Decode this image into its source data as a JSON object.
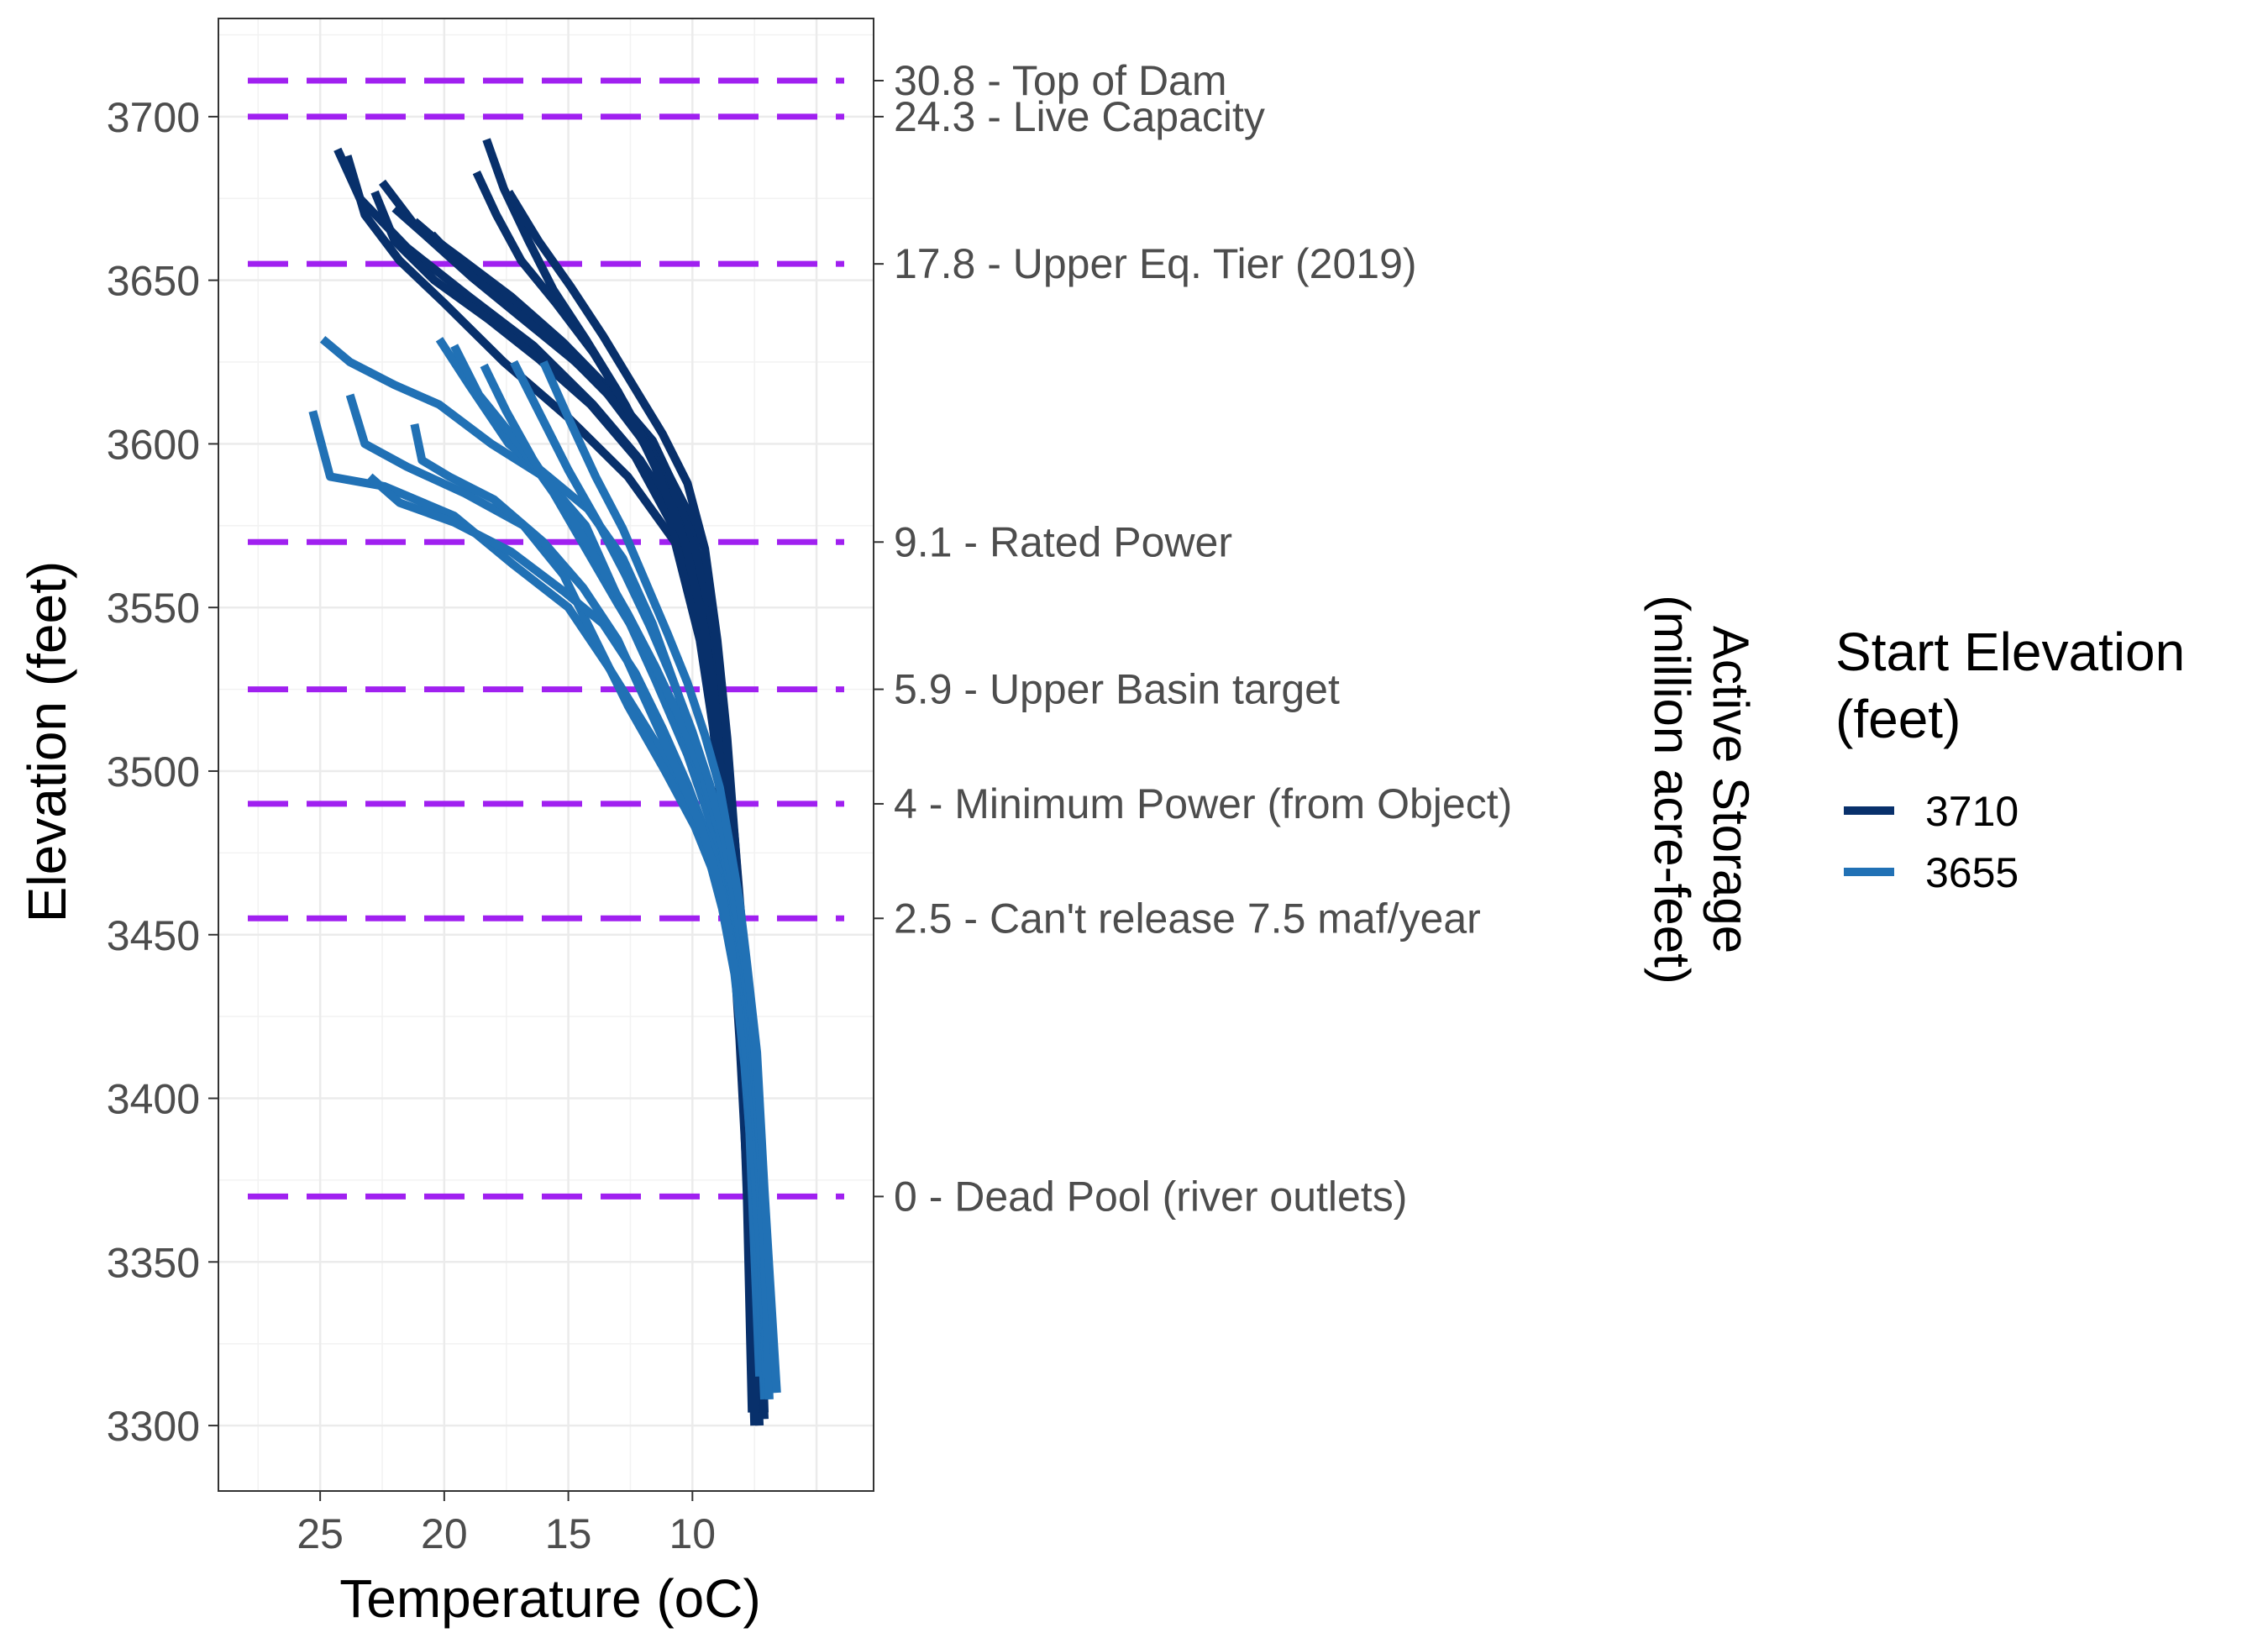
{
  "chart_data": {
    "type": "line",
    "xlabel": "Temperature (oC)",
    "ylabel": "Elevation (feet)",
    "y2label_line1": "Active Storage",
    "y2label_line2": "(million acre-feet)",
    "x_reversed": true,
    "xlim": [
      29.1,
      2.7
    ],
    "ylim": [
      3280,
      3730
    ],
    "xticks": [
      25,
      20,
      15,
      10
    ],
    "yticks": [
      3300,
      3350,
      3400,
      3450,
      3500,
      3550,
      3600,
      3650,
      3700
    ],
    "grid": true,
    "legend": {
      "title_line1": "Start Elevation",
      "title_line2": "(feet)",
      "placement": "right",
      "entries": [
        {
          "label": "3710",
          "color": "#08306B"
        },
        {
          "label": "3655",
          "color": "#2171B5"
        }
      ]
    },
    "reference_lines": {
      "color": "#A020F0",
      "style": "dashed",
      "items": [
        {
          "elevation": 3711,
          "label": "30.8 - Top of Dam"
        },
        {
          "elevation": 3700,
          "label": "24.3 - Live Capacity"
        },
        {
          "elevation": 3655,
          "label": "17.8 - Upper Eq. Tier (2019)"
        },
        {
          "elevation": 3570,
          "label": "9.1 - Rated Power"
        },
        {
          "elevation": 3525,
          "label": "5.9 - Upper Basin target"
        },
        {
          "elevation": 3490,
          "label": "4 - Minimum Power (from Object)"
        },
        {
          "elevation": 3455,
          "label": "2.5 - Can't release 7.5 maf/year"
        },
        {
          "elevation": 3370,
          "label": "0 - Dead Pool (river outlets)"
        }
      ]
    },
    "series": [
      {
        "group": "3710",
        "x": [
          24.3,
          23.4,
          21.5,
          19.0,
          16.4,
          14.0,
          12.1,
          10.4,
          9.5,
          8.9,
          8.5,
          8.2,
          7.9,
          7.6,
          7.5
        ],
        "y": [
          3690,
          3675,
          3660,
          3645,
          3630,
          3612,
          3595,
          3575,
          3545,
          3515,
          3485,
          3455,
          3420,
          3375,
          3302
        ]
      },
      {
        "group": "3710",
        "x": [
          23.9,
          23.2,
          21.8,
          20.0,
          17.6,
          15.0,
          12.6,
          10.7,
          9.7,
          9.1,
          8.6,
          8.3,
          8.0,
          7.8,
          7.6
        ],
        "y": [
          3688,
          3670,
          3656,
          3643,
          3625,
          3608,
          3590,
          3570,
          3540,
          3510,
          3478,
          3448,
          3412,
          3370,
          3304
        ]
      },
      {
        "group": "3710",
        "x": [
          22.8,
          22.0,
          20.4,
          18.2,
          16.2,
          14.1,
          12.3,
          10.8,
          9.8,
          9.2,
          8.8,
          8.4,
          8.1,
          7.7,
          7.3
        ],
        "y": [
          3677,
          3662,
          3650,
          3638,
          3626,
          3612,
          3596,
          3575,
          3546,
          3516,
          3486,
          3456,
          3420,
          3372,
          3300
        ]
      },
      {
        "group": "3710",
        "x": [
          22.5,
          21.2,
          19.4,
          17.3,
          15.2,
          13.4,
          11.6,
          10.3,
          9.6,
          9.1,
          8.7,
          8.3,
          8.0,
          7.7,
          7.4
        ],
        "y": [
          3680,
          3667,
          3657,
          3645,
          3631,
          3617,
          3601,
          3580,
          3552,
          3522,
          3492,
          3462,
          3428,
          3378,
          3304
        ]
      },
      {
        "group": "3710",
        "x": [
          22.0,
          20.8,
          18.9,
          16.8,
          14.7,
          13.0,
          11.4,
          10.1,
          9.4,
          8.9,
          8.6,
          8.2,
          7.9,
          7.6,
          7.2
        ],
        "y": [
          3672,
          3664,
          3651,
          3638,
          3625,
          3612,
          3597,
          3578,
          3550,
          3520,
          3490,
          3460,
          3425,
          3380,
          3306
        ]
      },
      {
        "group": "3710",
        "x": [
          21.2,
          19.8,
          17.9,
          15.9,
          14.0,
          12.4,
          11.0,
          9.9,
          9.2,
          8.8,
          8.4,
          8.1,
          7.8,
          7.5,
          7.1
        ],
        "y": [
          3668,
          3659,
          3647,
          3635,
          3621,
          3607,
          3590,
          3570,
          3545,
          3515,
          3485,
          3455,
          3420,
          3375,
          3302
        ]
      },
      {
        "group": "3710",
        "x": [
          20.5,
          19.0,
          17.2,
          15.4,
          13.6,
          12.1,
          10.8,
          9.8,
          9.1,
          8.7,
          8.3,
          8.0,
          7.7,
          7.4,
          7.2
        ],
        "y": [
          3664,
          3652,
          3641,
          3630,
          3617,
          3602,
          3585,
          3565,
          3540,
          3510,
          3480,
          3450,
          3416,
          3370,
          3308
        ]
      },
      {
        "group": "3710",
        "x": [
          18.3,
          17.6,
          16.6,
          15.6,
          14.3,
          13.0,
          11.7,
          10.5,
          9.6,
          9.0,
          8.6,
          8.3,
          8.0,
          7.7,
          7.5
        ],
        "y": [
          3693,
          3678,
          3662,
          3647,
          3632,
          3616,
          3598,
          3575,
          3548,
          3518,
          3488,
          3458,
          3422,
          3378,
          3306
        ]
      },
      {
        "group": "3710",
        "x": [
          18.7,
          17.9,
          16.9,
          15.5,
          14.0,
          12.7,
          11.5,
          10.3,
          9.5,
          9.0,
          8.7,
          8.4,
          8.1,
          7.8,
          7.5
        ],
        "y": [
          3683,
          3670,
          3656,
          3643,
          3628,
          3612,
          3593,
          3570,
          3543,
          3513,
          3483,
          3453,
          3418,
          3375,
          3300
        ]
      },
      {
        "group": "3710",
        "x": [
          17.4,
          16.2,
          14.9,
          13.6,
          12.4,
          11.2,
          10.2,
          9.5,
          9.0,
          8.6,
          8.3,
          8.0,
          7.7,
          7.4,
          7.1
        ],
        "y": [
          3677,
          3662,
          3648,
          3633,
          3618,
          3603,
          3588,
          3568,
          3540,
          3510,
          3480,
          3452,
          3420,
          3376,
          3304
        ]
      },
      {
        "group": "3655",
        "x": [
          25.3,
          24.6,
          22.4,
          19.6,
          17.2,
          15.0,
          13.4,
          12.0,
          10.6,
          9.5,
          8.8,
          8.3,
          7.9,
          7.5,
          7.1
        ],
        "y": [
          3610,
          3590,
          3587,
          3578,
          3563,
          3550,
          3532,
          3515,
          3498,
          3478,
          3458,
          3438,
          3410,
          3370,
          3312
        ]
      },
      {
        "group": "3655",
        "x": [
          24.9,
          23.8,
          22.0,
          20.2,
          18.1,
          16.0,
          14.3,
          13.0,
          11.5,
          10.2,
          9.3,
          8.6,
          8.1,
          7.7,
          7.3
        ],
        "y": [
          3632,
          3625,
          3618,
          3612,
          3600,
          3590,
          3575,
          3553,
          3528,
          3505,
          3485,
          3463,
          3435,
          3390,
          3315
        ]
      },
      {
        "group": "3655",
        "x": [
          23.8,
          23.2,
          21.5,
          19.2,
          16.8,
          15.2,
          13.9,
          12.6,
          11.1,
          9.9,
          9.0,
          8.4,
          7.9,
          7.5,
          7.1
        ],
        "y": [
          3615,
          3600,
          3593,
          3585,
          3575,
          3560,
          3540,
          3520,
          3500,
          3483,
          3466,
          3446,
          3418,
          3378,
          3308
        ]
      },
      {
        "group": "3655",
        "x": [
          23.0,
          21.8,
          19.6,
          17.3,
          15.2,
          13.6,
          12.3,
          11.2,
          10.2,
          9.3,
          8.6,
          8.1,
          7.7,
          7.3,
          7.0
        ],
        "y": [
          3590,
          3582,
          3576,
          3567,
          3555,
          3545,
          3530,
          3513,
          3496,
          3478,
          3460,
          3440,
          3412,
          3368,
          3310
        ]
      },
      {
        "group": "3655",
        "x": [
          21.2,
          20.9,
          19.8,
          18.0,
          16.0,
          14.4,
          13.0,
          11.8,
          10.6,
          9.6,
          8.9,
          8.4,
          7.9,
          7.5,
          6.9
        ],
        "y": [
          3606,
          3595,
          3590,
          3583,
          3570,
          3556,
          3540,
          3520,
          3500,
          3482,
          3465,
          3446,
          3418,
          3378,
          3312
        ]
      },
      {
        "group": "3655",
        "x": [
          20.2,
          19.0,
          17.4,
          15.8,
          14.2,
          12.8,
          11.6,
          10.6,
          9.7,
          9.0,
          8.5,
          8.0,
          7.6,
          7.2,
          6.8
        ],
        "y": [
          3632,
          3618,
          3600,
          3590,
          3580,
          3565,
          3545,
          3524,
          3503,
          3484,
          3466,
          3447,
          3420,
          3380,
          3316
        ]
      },
      {
        "group": "3655",
        "x": [
          19.6,
          18.6,
          17.0,
          15.6,
          14.3,
          13.0,
          11.8,
          10.7,
          9.8,
          9.0,
          8.5,
          8.1,
          7.7,
          7.3,
          6.9
        ],
        "y": [
          3630,
          3615,
          3600,
          3585,
          3568,
          3551,
          3536,
          3519,
          3501,
          3483,
          3465,
          3446,
          3418,
          3376,
          3318
        ]
      },
      {
        "group": "3655",
        "x": [
          18.4,
          17.5,
          16.4,
          15.1,
          13.8,
          12.6,
          11.5,
          10.5,
          9.6,
          8.9,
          8.4,
          8.0,
          7.6,
          7.2,
          6.8
        ],
        "y": [
          3624,
          3610,
          3595,
          3580,
          3564,
          3548,
          3532,
          3516,
          3499,
          3481,
          3463,
          3444,
          3417,
          3377,
          3312
        ]
      },
      {
        "group": "3655",
        "x": [
          17.2,
          16.2,
          15.0,
          13.8,
          12.7,
          11.7,
          10.8,
          10.0,
          9.3,
          8.7,
          8.3,
          7.9,
          7.5,
          7.2,
          6.9
        ],
        "y": [
          3625,
          3610,
          3592,
          3576,
          3560,
          3544,
          3528,
          3512,
          3496,
          3479,
          3461,
          3442,
          3416,
          3374,
          3308
        ]
      },
      {
        "group": "3655",
        "x": [
          16.0,
          15.0,
          13.9,
          12.8,
          11.9,
          11.0,
          10.2,
          9.5,
          8.9,
          8.5,
          8.1,
          7.8,
          7.4,
          7.1,
          6.6
        ],
        "y": [
          3625,
          3608,
          3590,
          3574,
          3558,
          3542,
          3527,
          3511,
          3495,
          3478,
          3460,
          3441,
          3414,
          3372,
          3310
        ]
      }
    ]
  }
}
